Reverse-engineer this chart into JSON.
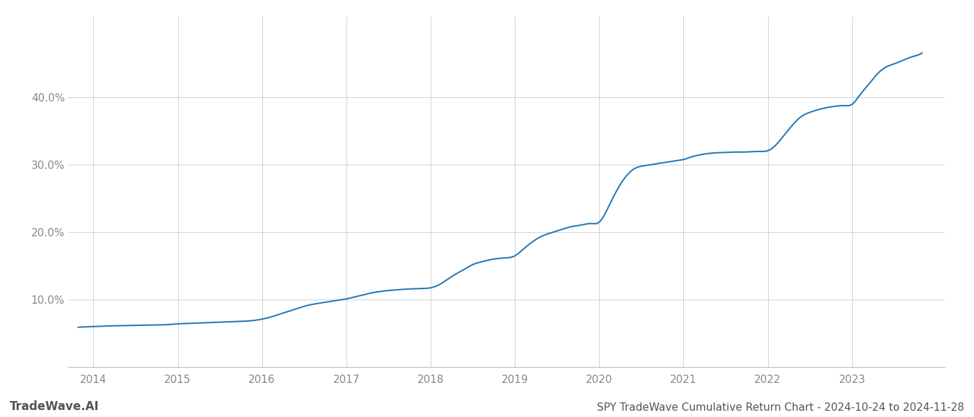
{
  "title": "SPY TradeWave Cumulative Return Chart - 2024-10-24 to 2024-11-28",
  "watermark": "TradeWave.AI",
  "line_color": "#2878b5",
  "background_color": "#ffffff",
  "grid_color": "#cccccc",
  "x_values": [
    2013.82,
    2014.0,
    2014.1,
    2014.2,
    2014.3,
    2014.4,
    2014.5,
    2014.6,
    2014.7,
    2014.8,
    2014.9,
    2015.0,
    2015.1,
    2015.2,
    2015.3,
    2015.4,
    2015.5,
    2015.6,
    2015.7,
    2015.8,
    2015.9,
    2016.0,
    2016.1,
    2016.2,
    2016.3,
    2016.4,
    2016.5,
    2016.6,
    2016.7,
    2016.8,
    2016.9,
    2017.0,
    2017.1,
    2017.2,
    2017.3,
    2017.4,
    2017.5,
    2017.6,
    2017.7,
    2017.8,
    2017.9,
    2018.0,
    2018.1,
    2018.2,
    2018.3,
    2018.4,
    2018.5,
    2018.6,
    2018.7,
    2018.8,
    2018.9,
    2019.0,
    2019.1,
    2019.2,
    2019.3,
    2019.4,
    2019.5,
    2019.6,
    2019.7,
    2019.8,
    2019.9,
    2020.0,
    2020.1,
    2020.2,
    2020.3,
    2020.4,
    2020.5,
    2020.6,
    2020.7,
    2020.8,
    2020.9,
    2021.0,
    2021.1,
    2021.2,
    2021.3,
    2021.4,
    2021.5,
    2021.6,
    2021.7,
    2021.8,
    2021.9,
    2022.0,
    2022.1,
    2022.2,
    2022.3,
    2022.4,
    2022.5,
    2022.6,
    2022.7,
    2022.8,
    2022.9,
    2023.0,
    2023.1,
    2023.2,
    2023.3,
    2023.4,
    2023.5,
    2023.6,
    2023.7,
    2023.8,
    2023.83
  ],
  "y_values": [
    5.9,
    6.0,
    6.05,
    6.1,
    6.12,
    6.15,
    6.18,
    6.2,
    6.22,
    6.25,
    6.3,
    6.4,
    6.45,
    6.5,
    6.55,
    6.6,
    6.65,
    6.7,
    6.75,
    6.8,
    6.9,
    7.1,
    7.4,
    7.8,
    8.2,
    8.6,
    9.0,
    9.3,
    9.5,
    9.7,
    9.9,
    10.1,
    10.4,
    10.7,
    11.0,
    11.2,
    11.35,
    11.45,
    11.55,
    11.6,
    11.65,
    11.75,
    12.2,
    13.0,
    13.8,
    14.5,
    15.2,
    15.6,
    15.9,
    16.1,
    16.2,
    16.5,
    17.5,
    18.5,
    19.3,
    19.8,
    20.2,
    20.6,
    20.9,
    21.1,
    21.3,
    21.5,
    23.5,
    26.0,
    28.0,
    29.3,
    29.8,
    30.0,
    30.2,
    30.4,
    30.6,
    30.8,
    31.2,
    31.5,
    31.7,
    31.8,
    31.85,
    31.9,
    31.9,
    31.95,
    32.0,
    32.1,
    33.0,
    34.5,
    36.0,
    37.2,
    37.8,
    38.2,
    38.5,
    38.7,
    38.8,
    39.0,
    40.5,
    42.0,
    43.5,
    44.5,
    45.0,
    45.5,
    46.0,
    46.4,
    46.6
  ],
  "xlim": [
    2013.7,
    2024.1
  ],
  "ylim": [
    0,
    52
  ],
  "yticks": [
    10.0,
    20.0,
    30.0,
    40.0
  ],
  "ytick_labels": [
    "10.0%",
    "20.0%",
    "30.0%",
    "40.0%"
  ],
  "xticks": [
    2014,
    2015,
    2016,
    2017,
    2018,
    2019,
    2020,
    2021,
    2022,
    2023
  ],
  "line_width": 1.5,
  "title_fontsize": 11,
  "tick_fontsize": 11,
  "watermark_fontsize": 12,
  "title_color": "#555555",
  "tick_color": "#888888",
  "watermark_color": "#555555"
}
